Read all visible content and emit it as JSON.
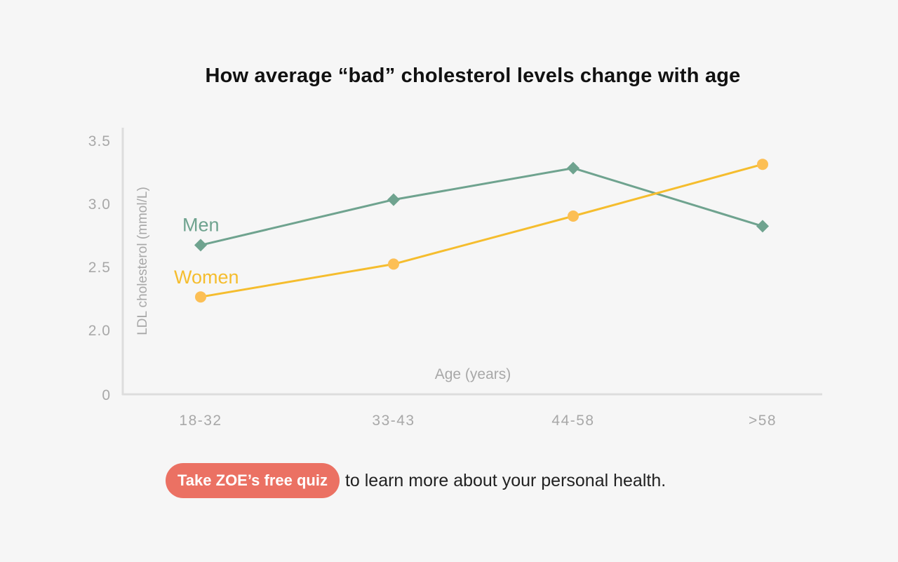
{
  "chart_data": {
    "type": "line",
    "title": "How average “bad” cholesterol levels change with age",
    "xlabel": "Age (years)",
    "ylabel": "LDL cholesterol (mmol/L)",
    "categories": [
      "18-32",
      "33-43",
      "44-58",
      ">58"
    ],
    "y_ticks": [
      "0",
      "2.0",
      "2.5",
      "3.0",
      "3.5"
    ],
    "ylim_broken": [
      2.0,
      3.5
    ],
    "grid": false,
    "legend": "inline labels at series start",
    "series": [
      {
        "name": "Men",
        "values": [
          2.67,
          3.03,
          3.28,
          2.82
        ],
        "color": "#6fa38f",
        "marker": "diamond"
      },
      {
        "name": "Women",
        "values": [
          2.26,
          2.52,
          2.9,
          3.31
        ],
        "color": "#f5bd2e",
        "marker": "circle",
        "marker_color": "#fcbf55"
      }
    ]
  },
  "cta": {
    "button_label": "Take ZOE’s free quiz",
    "text": "to learn more about your personal health.",
    "button_color": "#eb7163"
  }
}
